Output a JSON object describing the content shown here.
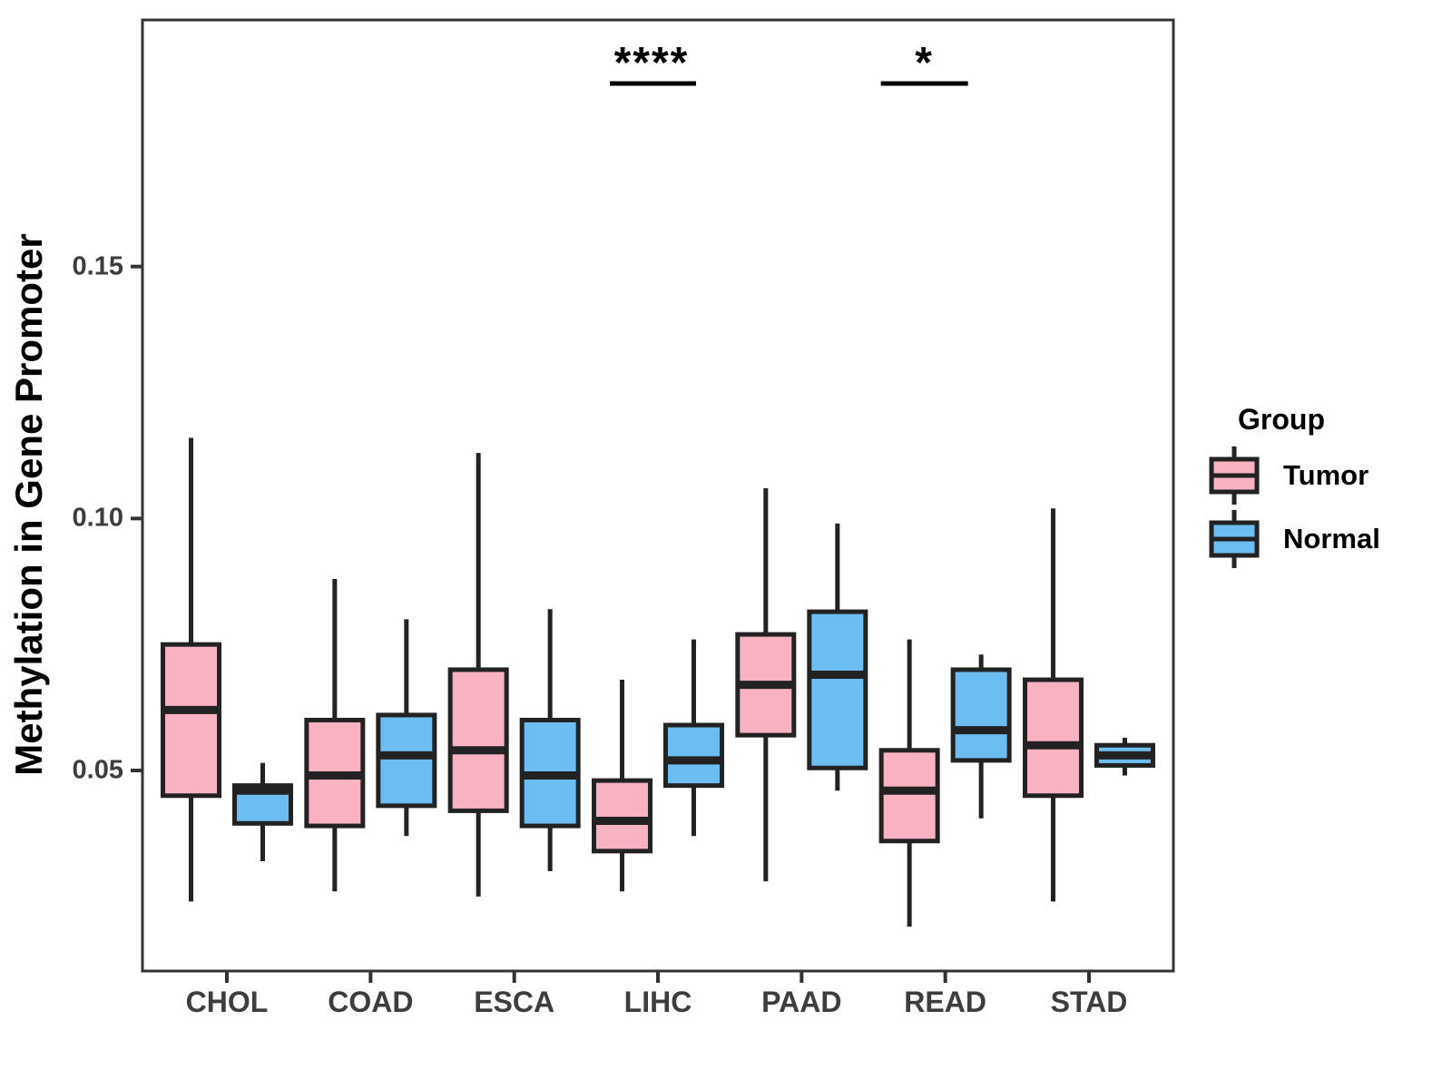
{
  "figure": {
    "kind": "grouped boxplot comparing Tumor vs Normal methylation"
  },
  "y_axis": {
    "label": "Methylation in Gene Promoter",
    "ticks": [
      "0.15",
      "0.10",
      "0.05"
    ],
    "tick_values": [
      0.15,
      0.1,
      0.05
    ],
    "range_approx": [
      0.01,
      0.199
    ],
    "grid": "off"
  },
  "x_axis": {
    "categories": [
      "CHOL",
      "COAD",
      "ESCA",
      "LIHC",
      "PAAD",
      "READ",
      "STAD"
    ]
  },
  "legend": {
    "title": "Group",
    "position": "right",
    "entries": [
      {
        "label": "Tumor",
        "color": "#F9B2C1"
      },
      {
        "label": "Normal",
        "color": "#6CBDF1"
      }
    ]
  },
  "annotations": [
    {
      "text": "****",
      "category": "LIHC"
    },
    {
      "text": "*",
      "category": "READ"
    }
  ],
  "style": {
    "stroke_color": "#222222",
    "panel_border_color": "#333333",
    "tick_color": "#333333",
    "background": "#ffffff"
  },
  "chart_data": {
    "type": "boxplot",
    "title": "",
    "xlabel": "",
    "ylabel": "Methylation in Gene Promoter",
    "ylim": [
      0.01,
      0.199
    ],
    "grid": false,
    "legend_position": "right",
    "categories": [
      "CHOL",
      "COAD",
      "ESCA",
      "LIHC",
      "PAAD",
      "READ",
      "STAD"
    ],
    "series": [
      {
        "name": "Tumor",
        "color": "#F9B2C1",
        "boxes": [
          {
            "whisker_low": 0.024,
            "q1": 0.045,
            "median": 0.062,
            "q3": 0.075,
            "whisker_high": 0.116
          },
          {
            "whisker_low": 0.026,
            "q1": 0.039,
            "median": 0.049,
            "q3": 0.06,
            "whisker_high": 0.088
          },
          {
            "whisker_low": 0.025,
            "q1": 0.042,
            "median": 0.054,
            "q3": 0.07,
            "whisker_high": 0.113
          },
          {
            "whisker_low": 0.026,
            "q1": 0.034,
            "median": 0.04,
            "q3": 0.048,
            "whisker_high": 0.068
          },
          {
            "whisker_low": 0.028,
            "q1": 0.057,
            "median": 0.067,
            "q3": 0.077,
            "whisker_high": 0.106
          },
          {
            "whisker_low": 0.019,
            "q1": 0.036,
            "median": 0.046,
            "q3": 0.054,
            "whisker_high": 0.076
          },
          {
            "whisker_low": 0.024,
            "q1": 0.045,
            "median": 0.055,
            "q3": 0.068,
            "whisker_high": 0.102
          }
        ]
      },
      {
        "name": "Normal",
        "color": "#6CBDF1",
        "boxes": [
          {
            "whisker_low": 0.032,
            "q1": 0.0395,
            "median": 0.046,
            "q3": 0.047,
            "whisker_high": 0.0515
          },
          {
            "whisker_low": 0.037,
            "q1": 0.043,
            "median": 0.053,
            "q3": 0.061,
            "whisker_high": 0.08
          },
          {
            "whisker_low": 0.03,
            "q1": 0.039,
            "median": 0.049,
            "q3": 0.06,
            "whisker_high": 0.082
          },
          {
            "whisker_low": 0.037,
            "q1": 0.047,
            "median": 0.052,
            "q3": 0.059,
            "whisker_high": 0.076
          },
          {
            "whisker_low": 0.046,
            "q1": 0.0505,
            "median": 0.069,
            "q3": 0.0815,
            "whisker_high": 0.099
          },
          {
            "whisker_low": 0.0405,
            "q1": 0.052,
            "median": 0.058,
            "q3": 0.07,
            "whisker_high": 0.073
          },
          {
            "whisker_low": 0.049,
            "q1": 0.051,
            "median": 0.053,
            "q3": 0.055,
            "whisker_high": 0.0565
          }
        ]
      }
    ]
  }
}
